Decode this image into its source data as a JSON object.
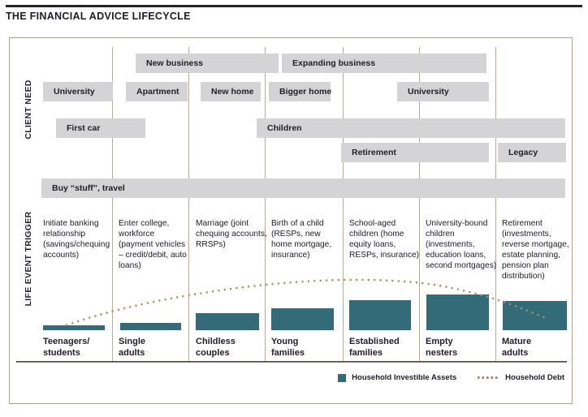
{
  "title": "THE FINANCIAL ADVICE LIFECYCLE",
  "axes": {
    "client_need": "CLIENT NEED",
    "life_event_trigger": "LIFE EVENT TRIGGER"
  },
  "colors": {
    "assets_teal": "#346b79",
    "debt_tan": "#a8916e",
    "box_border_tan": "#b3a287",
    "need_bar_gray": "#d4d4d6",
    "text_dark": "#20202a"
  },
  "needs": [
    {
      "label": "New business"
    },
    {
      "label": "Expanding business"
    },
    {
      "label": "University"
    },
    {
      "label": "Apartment"
    },
    {
      "label": "New home"
    },
    {
      "label": "Bigger home"
    },
    {
      "label": "University"
    },
    {
      "label": "First car"
    },
    {
      "label": "Children"
    },
    {
      "label": "Retirement"
    },
    {
      "label": "Legacy"
    },
    {
      "label": "Buy “stuff”, travel"
    }
  ],
  "segments": [
    {
      "label": "Teenagers/\nstudents",
      "trigger": "Initiate banking relationship (savings/chequing accounts)"
    },
    {
      "label": "Single\nadults",
      "trigger": "Enter college, workforce (payment vehicles – credit/debit, auto loans)"
    },
    {
      "label": "Childless\ncouples",
      "trigger": "Marriage (joint chequing accounts, RRSPs)"
    },
    {
      "label": "Young\nfamilies",
      "trigger": "Birth of a child (RESPs, new home mortgage, insurance)"
    },
    {
      "label": "Established\nfamilies",
      "trigger": "School-aged children (home equity loans, RESPs, insurance)"
    },
    {
      "label": "Empty\nnesters",
      "trigger": "University-bound children (investments, education loans, second mortgages)"
    },
    {
      "label": "Mature\nadults",
      "trigger": "Retirement (investments, reverse mortgage, estate planning, pension plan distribution)"
    }
  ],
  "legend": {
    "assets_label": "Household Investible Assets",
    "debt_label": "Household Debt"
  },
  "chart_data": {
    "type": "bar",
    "categories": [
      "Teenagers/students",
      "Single adults",
      "Childless couples",
      "Young families",
      "Established families",
      "Empty nesters",
      "Mature adults"
    ],
    "series": [
      {
        "name": "Household Investible Assets",
        "values": [
          6,
          9,
          21,
          27,
          37,
          44,
          36
        ]
      }
    ],
    "overlay_line": {
      "name": "Household Debt",
      "style": "dotted",
      "shape": "rises from teenagers/students, peaks around young/established families, declines through mature adults"
    },
    "ylabel": "",
    "xlabel": "",
    "legend_position": "bottom-right",
    "grid": false
  }
}
